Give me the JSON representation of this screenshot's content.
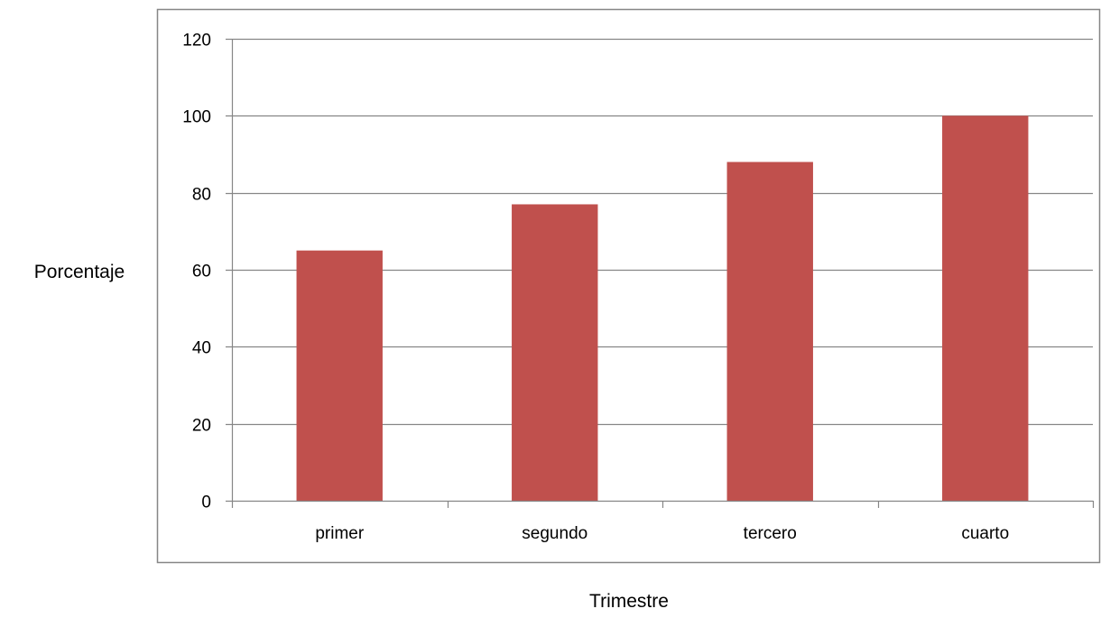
{
  "chart_data": {
    "type": "bar",
    "title": "",
    "xlabel": "Trimestre",
    "ylabel": "Porcentaje",
    "categories": [
      "primer",
      "segundo",
      "tercero",
      "cuarto"
    ],
    "series": [
      {
        "values": [
          65,
          77,
          88,
          100
        ]
      }
    ],
    "ylim": [
      0,
      120
    ],
    "yticks": [
      0,
      20,
      40,
      60,
      80,
      100,
      120
    ],
    "grid": true,
    "legend": "none",
    "colors": {
      "bar": "#C0504D",
      "grid": "#868686",
      "frame": "#868686"
    }
  }
}
